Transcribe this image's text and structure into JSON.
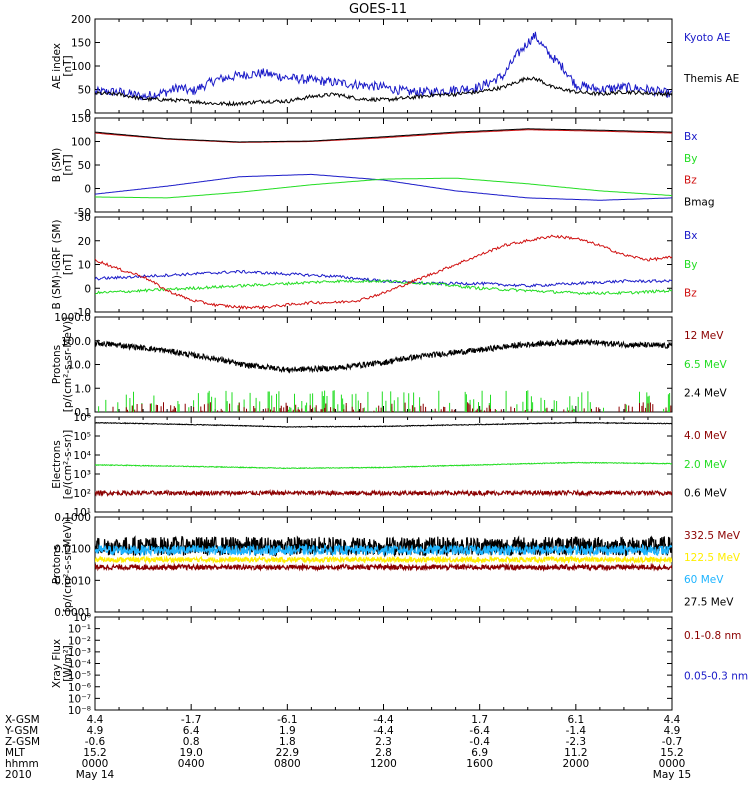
{
  "title": "GOES-11",
  "colors": {
    "black": "#000000",
    "blue": "#1a1ac8",
    "green": "#22dd22",
    "red": "#d01010",
    "darkred": "#8b0000",
    "yellow": "#ffee00",
    "cyan": "#1eb4ff"
  },
  "panels": [
    {
      "id": "ae",
      "ylabel": [
        "AE index",
        "[nT]"
      ],
      "ticks": [
        "200",
        "150",
        "100",
        "50",
        "0"
      ],
      "legend": [
        {
          "text": "Kyoto AE",
          "color": "blue"
        },
        {
          "text": "Themis AE",
          "color": "black"
        }
      ]
    },
    {
      "id": "bsm",
      "ylabel": [
        "B (SM)",
        "[nT]"
      ],
      "ticks": [
        "150",
        "100",
        "50",
        "0",
        "-50"
      ],
      "legend": [
        {
          "text": "Bx",
          "color": "blue"
        },
        {
          "text": "By",
          "color": "green"
        },
        {
          "text": "Bz",
          "color": "red"
        },
        {
          "text": "Bmag",
          "color": "black"
        }
      ]
    },
    {
      "id": "bigrf",
      "ylabel": [
        "B (SM)-IGRF (SM)",
        "[nT]"
      ],
      "ticks": [
        "30",
        "20",
        "10",
        "0",
        "-10"
      ],
      "legend": [
        {
          "text": "Bx",
          "color": "blue"
        },
        {
          "text": "By",
          "color": "green"
        },
        {
          "text": "Bz",
          "color": "red"
        }
      ]
    },
    {
      "id": "protons_hi",
      "ylabel": [
        "Protons",
        "[p/(cm²-s-sr-MeV)]"
      ],
      "ticks": [
        "1000.0",
        "100.0",
        "10.0",
        "1.0",
        "0.1"
      ],
      "legend": [
        {
          "text": "12 MeV",
          "color": "darkred"
        },
        {
          "text": "6.5 MeV",
          "color": "green"
        },
        {
          "text": "2.4 MeV",
          "color": "black"
        }
      ]
    },
    {
      "id": "electrons",
      "ylabel": [
        "Electrons",
        "[e/(cm²-s-sr)]"
      ],
      "ticks": [
        "10⁶",
        "10⁵",
        "10⁴",
        "10³",
        "10²",
        "10¹"
      ],
      "legend": [
        {
          "text": "4.0 MeV",
          "color": "darkred"
        },
        {
          "text": "2.0 MeV",
          "color": "green"
        },
        {
          "text": "0.6 MeV",
          "color": "black"
        }
      ]
    },
    {
      "id": "protons_lo",
      "ylabel": [
        "Protons",
        "[p/(cm²-s-sr-MeV)]"
      ],
      "ticks": [
        "0.1000",
        "0.0100",
        "0.0010",
        "0.0001"
      ],
      "legend": [
        {
          "text": "332.5 MeV",
          "color": "darkred"
        },
        {
          "text": "122.5 MeV",
          "color": "yellow"
        },
        {
          "text": "60 MeV",
          "color": "cyan"
        },
        {
          "text": "27.5 MeV",
          "color": "black"
        }
      ]
    },
    {
      "id": "xray",
      "ylabel": [
        "Xray Flux",
        "[W/m²]"
      ],
      "ticks": [
        "10⁰",
        "10⁻¹",
        "10⁻²",
        "10⁻³",
        "10⁻⁴",
        "10⁻⁵",
        "10⁻⁶",
        "10⁻⁷",
        "10⁻⁸"
      ],
      "legend": [
        {
          "text": "0.1-0.8 nm",
          "color": "darkred"
        },
        {
          "text": "0.05-0.3 nm",
          "color": "blue"
        }
      ]
    }
  ],
  "chart_data": {
    "type": "line",
    "x_range_hours": [
      0,
      24
    ],
    "panels": [
      {
        "id": "ae",
        "ylim": [
          0,
          200
        ],
        "series": [
          {
            "name": "Kyoto AE",
            "color": "blue",
            "x": [
              0,
              1,
              2,
              3,
              3.5,
              4,
              5,
              6,
              7,
              8,
              9,
              10,
              11,
              12,
              13,
              14,
              15,
              16,
              17,
              17.5,
              18,
              18.3,
              18.8,
              19.5,
              20,
              21,
              22,
              23,
              24
            ],
            "y": [
              45,
              45,
              35,
              45,
              55,
              45,
              70,
              80,
              85,
              75,
              70,
              65,
              60,
              55,
              45,
              45,
              50,
              55,
              80,
              120,
              150,
              165,
              130,
              95,
              60,
              50,
              55,
              50,
              40
            ]
          },
          {
            "name": "Themis AE",
            "color": "black",
            "x": [
              0,
              1,
              2,
              3,
              4,
              5,
              6,
              7,
              8,
              9,
              10,
              11,
              12,
              13,
              14,
              15,
              16,
              17,
              17.5,
              18,
              18.5,
              19,
              20,
              21,
              22,
              23,
              24
            ],
            "y": [
              42,
              40,
              30,
              28,
              25,
              20,
              20,
              25,
              25,
              35,
              40,
              30,
              28,
              32,
              38,
              40,
              45,
              55,
              65,
              75,
              70,
              55,
              45,
              40,
              45,
              42,
              40
            ]
          }
        ]
      },
      {
        "id": "bsm",
        "ylim": [
          -50,
          150
        ],
        "series": [
          {
            "name": "Bx",
            "color": "blue",
            "x": [
              0,
              3,
              6,
              9,
              12,
              15,
              18,
              21,
              24
            ],
            "y": [
              -12,
              5,
              25,
              30,
              18,
              -5,
              -20,
              -25,
              -20
            ]
          },
          {
            "name": "By",
            "color": "green",
            "x": [
              0,
              3,
              6,
              9,
              12,
              15,
              18,
              21,
              24
            ],
            "y": [
              -18,
              -20,
              -8,
              8,
              20,
              22,
              10,
              -5,
              -15
            ]
          },
          {
            "name": "Bz",
            "color": "red",
            "x": [
              0,
              3,
              6,
              9,
              12,
              15,
              18,
              21,
              24
            ],
            "y": [
              118,
              105,
              98,
              100,
              108,
              118,
              125,
              122,
              118
            ]
          },
          {
            "name": "Bmag",
            "color": "black",
            "x": [
              0,
              3,
              6,
              9,
              12,
              15,
              18,
              21,
              24
            ],
            "y": [
              120,
              106,
              99,
              101,
              110,
              120,
              127,
              124,
              120
            ]
          }
        ]
      },
      {
        "id": "bigrf",
        "ylim": [
          -10,
          30
        ],
        "series": [
          {
            "name": "Bx",
            "color": "blue",
            "x": [
              0,
              2,
              4,
              6,
              8,
              10,
              12,
              14,
              16,
              18,
              20,
              22,
              24
            ],
            "y": [
              4,
              5,
              6,
              7,
              6,
              5,
              3,
              2,
              2,
              1,
              2,
              3,
              3
            ]
          },
          {
            "name": "By",
            "color": "green",
            "x": [
              0,
              2,
              4,
              6,
              8,
              10,
              12,
              14,
              16,
              18,
              20,
              22,
              24
            ],
            "y": [
              -2,
              -1,
              0,
              1,
              2,
              3,
              3,
              2,
              0,
              -1,
              -2,
              -2,
              -1
            ]
          },
          {
            "name": "Bz",
            "color": "red",
            "x": [
              0,
              1,
              2,
              3,
              4,
              5,
              6,
              7,
              8,
              9,
              10,
              11,
              12,
              13,
              14,
              15,
              16,
              17,
              18,
              19,
              20,
              21,
              22,
              23,
              24
            ],
            "y": [
              12,
              8,
              5,
              -1,
              -5,
              -7,
              -8,
              -8,
              -7,
              -6,
              -6,
              -5,
              -2,
              2,
              6,
              10,
              14,
              18,
              20,
              22,
              21,
              18,
              14,
              12,
              13
            ]
          }
        ]
      },
      {
        "id": "protons_hi",
        "ylim_log": [
          0.1,
          1000
        ],
        "series": [
          {
            "name": "2.4 MeV",
            "color": "black",
            "x": [
              0,
              2,
              4,
              6,
              8,
              10,
              12,
              14,
              16,
              18,
              20,
              22,
              24
            ],
            "y": [
              80,
              50,
              25,
              10,
              6,
              7,
              12,
              25,
              40,
              70,
              90,
              70,
              60
            ]
          },
          {
            "name": "6.5 MeV",
            "color": "green",
            "x": [
              0,
              24
            ],
            "y": [
              0.15,
              0.15
            ]
          },
          {
            "name": "12 MeV",
            "color": "darkred",
            "x": [
              0,
              24
            ],
            "y": [
              0.1,
              0.1
            ]
          }
        ]
      },
      {
        "id": "electrons",
        "ylim_log": [
          10,
          1000000
        ],
        "series": [
          {
            "name": "0.6 MeV",
            "color": "black",
            "x": [
              0,
              4,
              8,
              12,
              16,
              20,
              24
            ],
            "y": [
              500000,
              400000,
              300000,
              320000,
              400000,
              500000,
              450000
            ]
          },
          {
            "name": "2.0 MeV",
            "color": "green",
            "x": [
              0,
              4,
              8,
              12,
              16,
              20,
              24
            ],
            "y": [
              3000,
              2500,
              2000,
              2200,
              3000,
              4000,
              3500
            ]
          },
          {
            "name": "4.0 MeV",
            "color": "darkred",
            "x": [
              0,
              24
            ],
            "y": [
              100,
              100
            ]
          }
        ]
      },
      {
        "id": "protons_lo",
        "ylim_log": [
          0.0001,
          0.1
        ],
        "series": [
          {
            "name": "27.5 MeV",
            "color": "black",
            "x": [
              0,
              24
            ],
            "y": [
              0.012,
              0.012
            ]
          },
          {
            "name": "60 MeV",
            "color": "cyan",
            "x": [
              0,
              24
            ],
            "y": [
              0.009,
              0.009
            ]
          },
          {
            "name": "122.5 MeV",
            "color": "yellow",
            "x": [
              0,
              24
            ],
            "y": [
              0.0045,
              0.0045
            ]
          },
          {
            "name": "332.5 MeV",
            "color": "darkred",
            "x": [
              0,
              24
            ],
            "y": [
              0.0026,
              0.0026
            ]
          }
        ]
      },
      {
        "id": "xray",
        "ylim_log": [
          1e-08,
          1
        ],
        "series": []
      }
    ]
  },
  "ephemeris": {
    "rows": [
      {
        "label": "X-GSM",
        "values": [
          "4.4",
          "-1.7",
          "-6.1",
          "-4.4",
          "1.7",
          "6.1",
          "4.4"
        ]
      },
      {
        "label": "Y-GSM",
        "values": [
          "4.9",
          "6.4",
          "1.9",
          "-4.4",
          "-6.4",
          "-1.4",
          "4.9"
        ]
      },
      {
        "label": "Z-GSM",
        "values": [
          "-0.6",
          "0.8",
          "1.8",
          "2.3",
          "-0.4",
          "-2.3",
          "-0.7"
        ]
      },
      {
        "label": "MLT",
        "values": [
          "15.2",
          "19.0",
          "22.9",
          "2.8",
          "6.9",
          "11.2",
          "15.2"
        ]
      },
      {
        "label": "hhmm",
        "values": [
          "0000",
          "0400",
          "0800",
          "1200",
          "1600",
          "2000",
          "0000"
        ]
      },
      {
        "label": "2010",
        "values": [
          "May 14",
          "",
          "",
          "",
          "",
          "",
          "May 15"
        ]
      }
    ]
  }
}
